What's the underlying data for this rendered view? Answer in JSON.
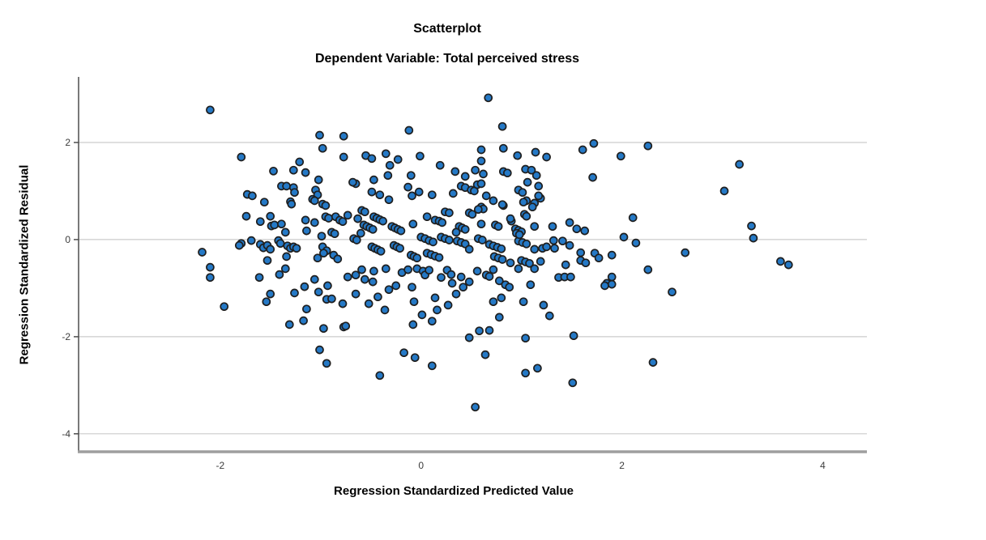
{
  "chart_data": {
    "type": "scatter",
    "title": "Scatterplot",
    "subtitle": "Dependent Variable: Total perceived stress",
    "xlabel": "Regression Standardized Predicted Value",
    "ylabel": "Regression Standardized Residual",
    "xlim": [
      -3.41,
      4.44
    ],
    "ylim": [
      -4.37,
      3.35
    ],
    "x_ticks": [
      -2,
      0,
      2,
      4
    ],
    "x_tick_labels": [
      "-2",
      "0",
      "2",
      "4"
    ],
    "y_ticks": [
      2,
      0,
      -2,
      -4
    ],
    "y_tick_labels": [
      "2",
      "0",
      "-2",
      "-4"
    ],
    "grid": "horizontal-only",
    "legend": "none",
    "colors": {
      "point_fill": "#2579C6",
      "point_stroke": "#1F1F1F",
      "grid": "#CCCCCC",
      "axis": "#4D4D4D",
      "axis_bottom": "#9E9E9E",
      "text": "#000000"
    },
    "points": [
      [
        -2.1,
        2.67
      ],
      [
        -1.01,
        2.15
      ],
      [
        -0.77,
        2.13
      ],
      [
        -0.98,
        1.88
      ],
      [
        -0.77,
        1.7
      ],
      [
        -1.79,
        1.7
      ],
      [
        -1.47,
        1.41
      ],
      [
        -1.27,
        1.43
      ],
      [
        -1.21,
        1.6
      ],
      [
        -1.15,
        1.38
      ],
      [
        -1.02,
        1.23
      ],
      [
        -1.39,
        1.1
      ],
      [
        -1.34,
        1.1
      ],
      [
        -1.27,
        1.07
      ],
      [
        -1.26,
        0.97
      ],
      [
        -1.05,
        1.02
      ],
      [
        -1.03,
        0.92
      ],
      [
        -1.73,
        0.93
      ],
      [
        -1.68,
        0.9
      ],
      [
        -1.56,
        0.77
      ],
      [
        -1.3,
        0.78
      ],
      [
        -1.29,
        0.73
      ],
      [
        -1.08,
        0.83
      ],
      [
        -1.06,
        0.8
      ],
      [
        -0.98,
        0.73
      ],
      [
        -0.95,
        0.7
      ],
      [
        -1.74,
        0.48
      ],
      [
        -1.6,
        0.37
      ],
      [
        -1.5,
        0.48
      ],
      [
        -1.49,
        0.28
      ],
      [
        -1.46,
        0.3
      ],
      [
        -1.39,
        0.32
      ],
      [
        -1.35,
        0.15
      ],
      [
        -1.15,
        0.4
      ],
      [
        -1.14,
        0.18
      ],
      [
        -1.06,
        0.35
      ],
      [
        -0.99,
        0.07
      ],
      [
        -0.95,
        0.47
      ],
      [
        -0.92,
        0.44
      ],
      [
        -0.85,
        0.47
      ],
      [
        -0.81,
        0.4
      ],
      [
        -0.78,
        0.37
      ],
      [
        -0.89,
        0.15
      ],
      [
        -0.86,
        0.12
      ],
      [
        -0.98,
        -0.15
      ],
      [
        -0.94,
        -0.23
      ],
      [
        -1.79,
        -0.08
      ],
      [
        -1.69,
        -0.02
      ],
      [
        -1.6,
        -0.1
      ],
      [
        -1.57,
        -0.17
      ],
      [
        -1.53,
        -0.12
      ],
      [
        -1.5,
        -0.2
      ],
      [
        -1.42,
        -0.02
      ],
      [
        -1.4,
        -0.08
      ],
      [
        -1.33,
        -0.13
      ],
      [
        -1.3,
        -0.18
      ],
      [
        -1.27,
        -0.15
      ],
      [
        -1.24,
        -0.18
      ],
      [
        -2.18,
        -0.26
      ],
      [
        -2.1,
        -0.57
      ],
      [
        -2.1,
        -0.78
      ],
      [
        -1.81,
        -0.12
      ],
      [
        -1.53,
        -0.43
      ],
      [
        -1.34,
        -0.35
      ],
      [
        -1.03,
        -0.38
      ],
      [
        -0.97,
        -0.28
      ],
      [
        -0.87,
        -0.32
      ],
      [
        -0.83,
        -0.4
      ],
      [
        0.67,
        2.92
      ],
      [
        0.81,
        2.33
      ],
      [
        -0.12,
        2.25
      ],
      [
        1.72,
        1.98
      ],
      [
        1.61,
        1.85
      ],
      [
        0.6,
        1.85
      ],
      [
        0.82,
        1.88
      ],
      [
        0.96,
        1.73
      ],
      [
        1.14,
        1.8
      ],
      [
        1.25,
        1.7
      ],
      [
        -0.55,
        1.73
      ],
      [
        -0.49,
        1.67
      ],
      [
        -0.35,
        1.77
      ],
      [
        -0.23,
        1.65
      ],
      [
        -0.01,
        1.72
      ],
      [
        0.19,
        1.53
      ],
      [
        -0.31,
        1.53
      ],
      [
        0.6,
        1.62
      ],
      [
        0.82,
        1.4
      ],
      [
        0.86,
        1.37
      ],
      [
        0.34,
        1.4
      ],
      [
        0.44,
        1.3
      ],
      [
        0.54,
        1.43
      ],
      [
        0.62,
        1.35
      ],
      [
        1.04,
        1.45
      ],
      [
        1.1,
        1.43
      ],
      [
        1.15,
        1.32
      ],
      [
        1.71,
        1.28
      ],
      [
        -0.33,
        1.32
      ],
      [
        -0.1,
        1.32
      ],
      [
        -0.47,
        1.23
      ],
      [
        -0.65,
        1.15
      ],
      [
        -0.68,
        1.18
      ],
      [
        -0.49,
        0.98
      ],
      [
        -0.41,
        0.92
      ],
      [
        -0.32,
        0.82
      ],
      [
        -0.13,
        1.08
      ],
      [
        -0.09,
        0.9
      ],
      [
        -0.02,
        0.98
      ],
      [
        0.11,
        0.92
      ],
      [
        0.32,
        0.95
      ],
      [
        0.4,
        1.1
      ],
      [
        0.44,
        1.07
      ],
      [
        0.5,
        1.02
      ],
      [
        0.53,
        1.0
      ],
      [
        0.56,
        1.13
      ],
      [
        0.6,
        1.15
      ],
      [
        0.65,
        0.9
      ],
      [
        0.72,
        0.8
      ],
      [
        0.97,
        1.02
      ],
      [
        1.01,
        0.97
      ],
      [
        1.06,
        1.18
      ],
      [
        1.17,
        1.1
      ],
      [
        1.19,
        0.85
      ],
      [
        1.05,
        0.8
      ],
      [
        1.13,
        0.75
      ],
      [
        1.17,
        0.9
      ],
      [
        0.82,
        0.7
      ],
      [
        0.6,
        0.67
      ],
      [
        0.62,
        0.63
      ],
      [
        0.57,
        0.62
      ],
      [
        0.48,
        0.55
      ],
      [
        0.51,
        0.52
      ],
      [
        0.24,
        0.57
      ],
      [
        0.28,
        0.55
      ],
      [
        0.06,
        0.47
      ],
      [
        0.14,
        0.4
      ],
      [
        0.18,
        0.38
      ],
      [
        0.21,
        0.35
      ],
      [
        -0.59,
        0.6
      ],
      [
        -0.56,
        0.57
      ],
      [
        -0.47,
        0.47
      ],
      [
        -0.44,
        0.44
      ],
      [
        -0.41,
        0.41
      ],
      [
        -0.38,
        0.38
      ],
      [
        -0.63,
        0.43
      ],
      [
        -0.73,
        0.5
      ],
      [
        -0.57,
        0.3
      ],
      [
        -0.54,
        0.27
      ],
      [
        -0.51,
        0.24
      ],
      [
        -0.48,
        0.21
      ],
      [
        -0.29,
        0.27
      ],
      [
        -0.26,
        0.24
      ],
      [
        -0.23,
        0.21
      ],
      [
        -0.2,
        0.18
      ],
      [
        -0.08,
        0.32
      ],
      [
        0.38,
        0.27
      ],
      [
        0.41,
        0.24
      ],
      [
        0.44,
        0.21
      ],
      [
        0.35,
        0.15
      ],
      [
        0.6,
        0.32
      ],
      [
        0.74,
        0.3
      ],
      [
        0.77,
        0.27
      ],
      [
        0.9,
        0.38
      ],
      [
        0.94,
        0.22
      ],
      [
        0.97,
        0.19
      ],
      [
        1.0,
        0.16
      ],
      [
        1.13,
        0.27
      ],
      [
        1.48,
        0.35
      ],
      [
        1.55,
        0.22
      ],
      [
        1.63,
        0.18
      ],
      [
        0.0,
        0.05
      ],
      [
        0.04,
        0.02
      ],
      [
        0.08,
        -0.02
      ],
      [
        0.12,
        -0.05
      ],
      [
        0.2,
        0.05
      ],
      [
        0.24,
        0.02
      ],
      [
        0.28,
        -0.01
      ],
      [
        0.36,
        -0.03
      ],
      [
        0.4,
        -0.06
      ],
      [
        0.44,
        -0.09
      ],
      [
        0.48,
        -0.2
      ],
      [
        0.57,
        0.02
      ],
      [
        0.61,
        -0.01
      ],
      [
        0.68,
        -0.1
      ],
      [
        0.72,
        -0.13
      ],
      [
        0.76,
        -0.16
      ],
      [
        0.8,
        -0.19
      ],
      [
        0.97,
        -0.03
      ],
      [
        1.01,
        -0.06
      ],
      [
        1.05,
        -0.09
      ],
      [
        1.13,
        -0.2
      ],
      [
        1.21,
        -0.18
      ],
      [
        1.32,
        -0.02
      ],
      [
        1.41,
        -0.03
      ],
      [
        1.48,
        -0.12
      ],
      [
        1.59,
        -0.27
      ],
      [
        -0.6,
        0.13
      ],
      [
        -0.67,
        0.02
      ],
      [
        -0.64,
        -0.01
      ],
      [
        -0.49,
        -0.15
      ],
      [
        -0.46,
        -0.18
      ],
      [
        -0.43,
        -0.21
      ],
      [
        -0.4,
        -0.24
      ],
      [
        -0.27,
        -0.12
      ],
      [
        -0.24,
        -0.15
      ],
      [
        -0.21,
        -0.18
      ],
      [
        -0.1,
        -0.32
      ],
      [
        -0.07,
        -0.35
      ],
      [
        -0.04,
        -0.38
      ],
      [
        0.06,
        -0.28
      ],
      [
        0.1,
        -0.31
      ],
      [
        0.14,
        -0.34
      ],
      [
        0.18,
        -0.37
      ],
      [
        0.73,
        -0.35
      ],
      [
        0.77,
        -0.38
      ],
      [
        0.81,
        -0.41
      ],
      [
        0.89,
        -0.48
      ],
      [
        1.0,
        -0.43
      ],
      [
        1.04,
        -0.46
      ],
      [
        1.08,
        -0.49
      ],
      [
        1.19,
        -0.45
      ],
      [
        1.59,
        -0.43
      ],
      [
        1.73,
        -0.28
      ],
      [
        1.25,
        -0.15
      ],
      [
        1.33,
        -0.18
      ],
      [
        0.89,
        0.43
      ],
      [
        0.95,
        0.13
      ],
      [
        0.98,
        0.1
      ],
      [
        1.31,
        0.27
      ],
      [
        1.02,
        0.77
      ],
      [
        1.11,
        0.67
      ],
      [
        0.81,
        0.72
      ],
      [
        1.03,
        0.52
      ],
      [
        1.05,
        0.48
      ],
      [
        2.26,
        1.93
      ],
      [
        1.99,
        1.72
      ],
      [
        3.17,
        1.55
      ],
      [
        3.02,
        1.0
      ],
      [
        2.11,
        0.45
      ],
      [
        2.02,
        0.05
      ],
      [
        2.14,
        -0.07
      ],
      [
        3.29,
        0.28
      ],
      [
        3.31,
        0.03
      ],
      [
        2.63,
        -0.27
      ],
      [
        3.58,
        -0.45
      ],
      [
        3.66,
        -0.52
      ],
      [
        -1.61,
        -0.78
      ],
      [
        -1.41,
        -0.72
      ],
      [
        -1.35,
        -0.6
      ],
      [
        -1.06,
        -0.82
      ],
      [
        -0.93,
        -0.95
      ],
      [
        -1.5,
        -1.12
      ],
      [
        -1.54,
        -1.28
      ],
      [
        -1.96,
        -1.38
      ],
      [
        -1.26,
        -1.1
      ],
      [
        -1.16,
        -0.97
      ],
      [
        -1.02,
        -1.08
      ],
      [
        -0.94,
        -1.23
      ],
      [
        -0.89,
        -1.22
      ],
      [
        -0.78,
        -1.32
      ],
      [
        -1.14,
        -1.43
      ],
      [
        -1.31,
        -1.75
      ],
      [
        -1.17,
        -1.67
      ],
      [
        -0.97,
        -1.83
      ],
      [
        -0.77,
        -1.8
      ],
      [
        -1.01,
        -2.27
      ],
      [
        -0.94,
        -2.55
      ],
      [
        -0.73,
        -0.77
      ],
      [
        -0.65,
        -0.73
      ],
      [
        -0.56,
        -0.82
      ],
      [
        -0.48,
        -0.87
      ],
      [
        -0.59,
        -0.62
      ],
      [
        -0.47,
        -0.65
      ],
      [
        -0.35,
        -0.6
      ],
      [
        -0.32,
        -1.03
      ],
      [
        -0.25,
        -0.95
      ],
      [
        -0.19,
        -0.68
      ],
      [
        -0.13,
        -0.62
      ],
      [
        -0.09,
        -0.98
      ],
      [
        -0.04,
        -0.6
      ],
      [
        0.02,
        -0.65
      ],
      [
        0.04,
        -0.73
      ],
      [
        0.08,
        -0.63
      ],
      [
        0.14,
        -1.2
      ],
      [
        0.16,
        -1.45
      ],
      [
        0.2,
        -0.78
      ],
      [
        0.26,
        -0.63
      ],
      [
        0.3,
        -0.72
      ],
      [
        0.31,
        -0.9
      ],
      [
        0.35,
        -1.12
      ],
      [
        0.27,
        -1.35
      ],
      [
        0.4,
        -0.77
      ],
      [
        0.42,
        -0.98
      ],
      [
        0.48,
        -0.87
      ],
      [
        0.56,
        -0.65
      ],
      [
        0.65,
        -0.73
      ],
      [
        0.68,
        -0.76
      ],
      [
        0.72,
        -0.62
      ],
      [
        0.78,
        -0.85
      ],
      [
        0.84,
        -0.93
      ],
      [
        0.88,
        -0.98
      ],
      [
        0.97,
        -0.6
      ],
      [
        1.02,
        -1.28
      ],
      [
        1.09,
        -0.93
      ],
      [
        1.13,
        -0.6
      ],
      [
        1.28,
        -1.57
      ],
      [
        1.37,
        -0.78
      ],
      [
        1.43,
        -0.77
      ],
      [
        1.52,
        -1.98
      ],
      [
        1.85,
        -0.9
      ],
      [
        1.9,
        -0.77
      ],
      [
        0.72,
        -1.28
      ],
      [
        0.8,
        -1.2
      ],
      [
        0.68,
        -1.87
      ],
      [
        0.78,
        -1.6
      ],
      [
        0.58,
        -1.88
      ],
      [
        0.48,
        -2.02
      ],
      [
        -0.07,
        -1.28
      ],
      [
        0.01,
        -1.55
      ],
      [
        0.11,
        -1.68
      ],
      [
        -0.08,
        -1.75
      ],
      [
        -0.36,
        -1.45
      ],
      [
        -0.52,
        -1.32
      ],
      [
        -0.43,
        -1.18
      ],
      [
        -0.65,
        -1.12
      ],
      [
        -0.75,
        -1.78
      ],
      [
        -0.17,
        -2.33
      ],
      [
        -0.06,
        -2.43
      ],
      [
        0.11,
        -2.6
      ],
      [
        -0.41,
        -2.8
      ],
      [
        0.64,
        -2.37
      ],
      [
        1.04,
        -2.75
      ],
      [
        1.16,
        -2.65
      ],
      [
        1.51,
        -2.95
      ],
      [
        0.54,
        -3.45
      ],
      [
        1.04,
        -2.03
      ],
      [
        1.22,
        -1.35
      ],
      [
        1.9,
        -0.92
      ],
      [
        1.44,
        -0.52
      ],
      [
        1.49,
        -0.77
      ],
      [
        1.64,
        -0.48
      ],
      [
        1.77,
        -0.38
      ],
      [
        1.9,
        -0.32
      ],
      [
        1.83,
        -0.95
      ],
      [
        2.26,
        -0.62
      ],
      [
        2.5,
        -1.08
      ],
      [
        2.31,
        -2.53
      ]
    ]
  }
}
